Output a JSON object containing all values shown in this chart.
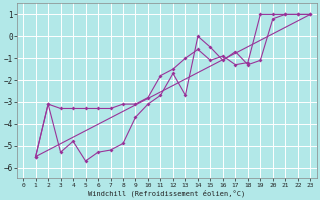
{
  "xlabel": "Windchill (Refroidissement éolien,°C)",
  "background_color": "#b2e8e8",
  "grid_color": "#ffffff",
  "line_color": "#993399",
  "xlim": [
    -0.5,
    23.5
  ],
  "ylim": [
    -6.5,
    1.5
  ],
  "yticks": [
    1,
    0,
    -1,
    -2,
    -3,
    -4,
    -5,
    -6
  ],
  "xticks": [
    0,
    1,
    2,
    3,
    4,
    5,
    6,
    7,
    8,
    9,
    10,
    11,
    12,
    13,
    14,
    15,
    16,
    17,
    18,
    19,
    20,
    21,
    22,
    23
  ],
  "line1_x": [
    1,
    2,
    3,
    4,
    5,
    6,
    7,
    8,
    9,
    10,
    11,
    12,
    13,
    14,
    15,
    16,
    17,
    18,
    19,
    20,
    21,
    22,
    23
  ],
  "line1_y": [
    -5.5,
    -3.1,
    -3.3,
    -3.3,
    -3.3,
    -3.3,
    -3.3,
    -3.1,
    -3.1,
    -2.8,
    -1.8,
    -1.5,
    -1.0,
    -0.6,
    -1.1,
    -0.9,
    -1.3,
    -1.2,
    1.0,
    1.0,
    1.0,
    1.0,
    1.0
  ],
  "line2_x": [
    1,
    2,
    3,
    4,
    5,
    6,
    7,
    8,
    9,
    10,
    11,
    12,
    13,
    14,
    15,
    16,
    17,
    18,
    19,
    20,
    21,
    22,
    23
  ],
  "line2_y": [
    -5.5,
    -3.1,
    -5.3,
    -4.8,
    -5.7,
    -5.3,
    -5.2,
    -4.9,
    -3.7,
    -3.1,
    -2.7,
    -1.7,
    -2.7,
    0.0,
    -0.5,
    -1.1,
    -0.7,
    -1.3,
    -1.1,
    0.8,
    1.0,
    1.0,
    1.0
  ],
  "line3_x": [
    1,
    23
  ],
  "line3_y": [
    -5.5,
    1.0
  ]
}
